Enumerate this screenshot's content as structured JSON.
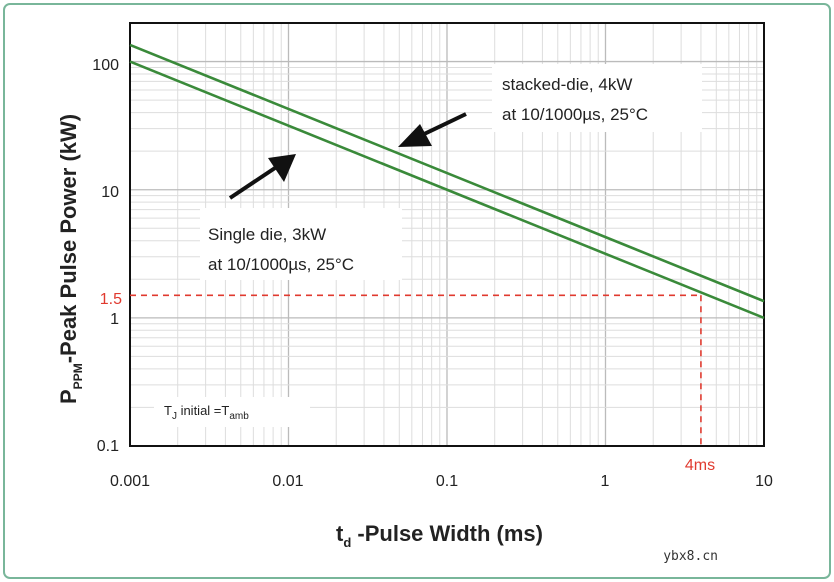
{
  "chart_data": {
    "type": "line",
    "x_scale": "log",
    "y_scale": "log",
    "xlim": [
      0.001,
      10
    ],
    "ylim": [
      0.1,
      200
    ],
    "xticks": [
      0.001,
      0.01,
      0.1,
      1,
      10
    ],
    "xtick_labels": [
      "0.001",
      "0.01",
      "0.1",
      "1",
      "10"
    ],
    "yticks": [
      0.1,
      1,
      10,
      100
    ],
    "ytick_labels": [
      "0.1",
      "1",
      "10",
      "100"
    ],
    "grid": true,
    "xlabel": {
      "main": "t",
      "sub": "d",
      "rest": " -Pulse Width (ms)"
    },
    "ylabel": {
      "main": "P",
      "sub": "PPM",
      "rest": "-Peak Pulse Power (kW)"
    },
    "series": [
      {
        "name": "stacked-die, 4kW at 10/1000µs, 25°C",
        "color": "#3a8a3a",
        "x": [
          0.001,
          10
        ],
        "y": [
          135,
          1.35
        ]
      },
      {
        "name": "Single die, 3kW at 10/1000µs, 25°C",
        "color": "#3a8a3a",
        "x": [
          0.001,
          10
        ],
        "y": [
          100,
          1.0
        ]
      }
    ],
    "reference": {
      "x": 4,
      "y": 1.5,
      "x_label": "4ms",
      "y_label": "1.5",
      "color": "#e03a2f"
    },
    "annotations": {
      "stacked": [
        "stacked-die, 4kW",
        "at 10/1000µs, 25°C"
      ],
      "single": [
        "Single die, 3kW",
        "at 10/1000µs, 25°C"
      ],
      "tj": {
        "a": "T",
        "a_sub": "J",
        "b": " initial =T",
        "b_sub": "amb"
      }
    }
  },
  "watermark": "ybx8.cn"
}
